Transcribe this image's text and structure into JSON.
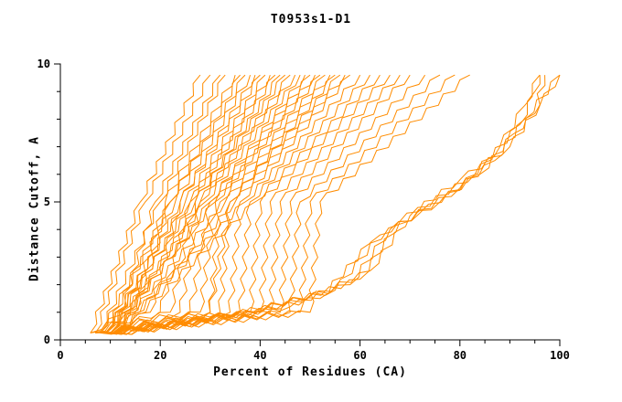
{
  "chart_data": {
    "type": "line",
    "title": "T0953s1-D1",
    "xlabel": "Percent of Residues (CA)",
    "ylabel": "Distance Cutoff, A",
    "xlim": [
      0,
      100
    ],
    "ylim": [
      0,
      10
    ],
    "x_major_ticks": [
      0,
      20,
      40,
      60,
      80,
      100
    ],
    "y_major_ticks": [
      0,
      5,
      10
    ],
    "x_minor_step": 5,
    "y_minor_step": 1,
    "grid": false,
    "legend": "none",
    "line_color": "#ff8c00",
    "axis_color": "#000000",
    "series_note": "Each series lists [percent_of_residues, distance_cutoff] control points for one model curve",
    "series": [
      [
        [
          6,
          0.25
        ],
        [
          16,
          5
        ],
        [
          28,
          9.6
        ]
      ],
      [
        [
          7,
          0.25
        ],
        [
          17,
          5
        ],
        [
          30,
          9.6
        ]
      ],
      [
        [
          6,
          0.25
        ],
        [
          12,
          0.9
        ],
        [
          19,
          5
        ],
        [
          32,
          9.6
        ]
      ],
      [
        [
          8,
          0.25
        ],
        [
          20,
          5
        ],
        [
          33,
          9.6
        ]
      ],
      [
        [
          7,
          0.25
        ],
        [
          14,
          0.9
        ],
        [
          21,
          5
        ],
        [
          35,
          9.6
        ]
      ],
      [
        [
          9,
          0.25
        ],
        [
          22,
          5
        ],
        [
          36,
          9.6
        ]
      ],
      [
        [
          6,
          0.25
        ],
        [
          15,
          1
        ],
        [
          22,
          5
        ],
        [
          37,
          9.6
        ]
      ],
      [
        [
          8,
          0.25
        ],
        [
          23,
          5
        ],
        [
          38,
          9.6
        ]
      ],
      [
        [
          10,
          0.25
        ],
        [
          24,
          5
        ],
        [
          39,
          9.6
        ]
      ],
      [
        [
          7,
          0.25
        ],
        [
          18,
          1
        ],
        [
          24,
          5
        ],
        [
          40,
          9.6
        ]
      ],
      [
        [
          9,
          0.25
        ],
        [
          25,
          5
        ],
        [
          41,
          9.6
        ]
      ],
      [
        [
          8,
          0.25
        ],
        [
          20,
          1
        ],
        [
          26,
          5
        ],
        [
          42,
          9.6
        ]
      ],
      [
        [
          10,
          0.25
        ],
        [
          26,
          5
        ],
        [
          43,
          9.6
        ]
      ],
      [
        [
          7,
          0.25
        ],
        [
          22,
          1
        ],
        [
          27,
          5
        ],
        [
          44,
          9.6
        ]
      ],
      [
        [
          9,
          0.25
        ],
        [
          27,
          5
        ],
        [
          45,
          9.6
        ]
      ],
      [
        [
          11,
          0.25
        ],
        [
          28,
          5
        ],
        [
          46,
          9.6
        ]
      ],
      [
        [
          8,
          0.25
        ],
        [
          24,
          1
        ],
        [
          28,
          5
        ],
        [
          47,
          9.6
        ]
      ],
      [
        [
          10,
          0.25
        ],
        [
          29,
          5
        ],
        [
          48,
          9.6
        ]
      ],
      [
        [
          9,
          0.25
        ],
        [
          26,
          1
        ],
        [
          30,
          5
        ],
        [
          49,
          9.6
        ]
      ],
      [
        [
          11,
          0.25
        ],
        [
          30,
          5
        ],
        [
          50,
          9.6
        ]
      ],
      [
        [
          8,
          0.25
        ],
        [
          28,
          1
        ],
        [
          31,
          5
        ],
        [
          51,
          9.6
        ]
      ],
      [
        [
          10,
          0.25
        ],
        [
          31,
          5
        ],
        [
          52,
          9.6
        ]
      ],
      [
        [
          9,
          0.25
        ],
        [
          30,
          1
        ],
        [
          32,
          5
        ],
        [
          53,
          9.6
        ]
      ],
      [
        [
          11,
          0.25
        ],
        [
          33,
          5
        ],
        [
          54,
          9.6
        ]
      ],
      [
        [
          10,
          0.25
        ],
        [
          32,
          1
        ],
        [
          34,
          5
        ],
        [
          55,
          9.6
        ]
      ],
      [
        [
          8,
          0.25
        ],
        [
          30,
          1
        ],
        [
          34,
          5
        ],
        [
          56,
          9.6
        ]
      ],
      [
        [
          12,
          0.25
        ],
        [
          35,
          5
        ],
        [
          57,
          9.6
        ]
      ],
      [
        [
          9,
          0.25
        ],
        [
          34,
          1
        ],
        [
          36,
          5
        ],
        [
          58,
          9.6
        ]
      ],
      [
        [
          11,
          0.25
        ],
        [
          37,
          5
        ],
        [
          60,
          9.6
        ]
      ],
      [
        [
          10,
          0.25
        ],
        [
          36,
          1
        ],
        [
          38,
          5
        ],
        [
          62,
          9.6
        ]
      ],
      [
        [
          12,
          0.25
        ],
        [
          39,
          5
        ],
        [
          64,
          9.6
        ]
      ],
      [
        [
          9,
          0.25
        ],
        [
          38,
          1
        ],
        [
          40,
          5
        ],
        [
          66,
          9.6
        ]
      ],
      [
        [
          11,
          0.25
        ],
        [
          40,
          1
        ],
        [
          42,
          5
        ],
        [
          68,
          9.6
        ]
      ],
      [
        [
          10,
          0.25
        ],
        [
          42,
          1
        ],
        [
          44,
          5
        ],
        [
          70,
          9.6
        ]
      ],
      [
        [
          12,
          0.25
        ],
        [
          44,
          1
        ],
        [
          46,
          5
        ],
        [
          73,
          9.6
        ]
      ],
      [
        [
          10,
          0.25
        ],
        [
          46,
          1
        ],
        [
          48,
          5
        ],
        [
          76,
          9.6
        ]
      ],
      [
        [
          11,
          0.25
        ],
        [
          48,
          1
        ],
        [
          50,
          5
        ],
        [
          79,
          9.6
        ]
      ],
      [
        [
          12,
          0.25
        ],
        [
          50,
          1
        ],
        [
          52,
          5
        ],
        [
          82,
          9.6
        ]
      ],
      [
        [
          8,
          0.25
        ],
        [
          30,
          0.8
        ],
        [
          52,
          1.5
        ],
        [
          62,
          3.5
        ],
        [
          68,
          4.2
        ],
        [
          80,
          5.5
        ],
        [
          88,
          7
        ],
        [
          93,
          8.5
        ],
        [
          96,
          9.6
        ]
      ],
      [
        [
          9,
          0.25
        ],
        [
          34,
          0.9
        ],
        [
          55,
          1.8
        ],
        [
          64,
          3.8
        ],
        [
          72,
          4.6
        ],
        [
          84,
          6
        ],
        [
          91,
          7.5
        ],
        [
          95,
          8.2
        ],
        [
          97,
          9.6
        ]
      ],
      [
        [
          10,
          0.25
        ],
        [
          38,
          1
        ],
        [
          58,
          2
        ],
        [
          66,
          4
        ],
        [
          76,
          5
        ],
        [
          87,
          6.5
        ],
        [
          93,
          8
        ],
        [
          100,
          9.6
        ]
      ],
      [
        [
          9,
          0.25
        ],
        [
          42,
          1.1
        ],
        [
          60,
          2.2
        ],
        [
          68,
          4.3
        ],
        [
          80,
          5.8
        ],
        [
          90,
          7
        ],
        [
          96,
          8.5
        ],
        [
          100,
          9.6
        ]
      ],
      [
        [
          11,
          0.25
        ],
        [
          46,
          1.2
        ],
        [
          62,
          2.5
        ],
        [
          70,
          4.5
        ],
        [
          83,
          6
        ],
        [
          92,
          7.8
        ],
        [
          95,
          9
        ],
        [
          96,
          9.6
        ]
      ]
    ]
  }
}
